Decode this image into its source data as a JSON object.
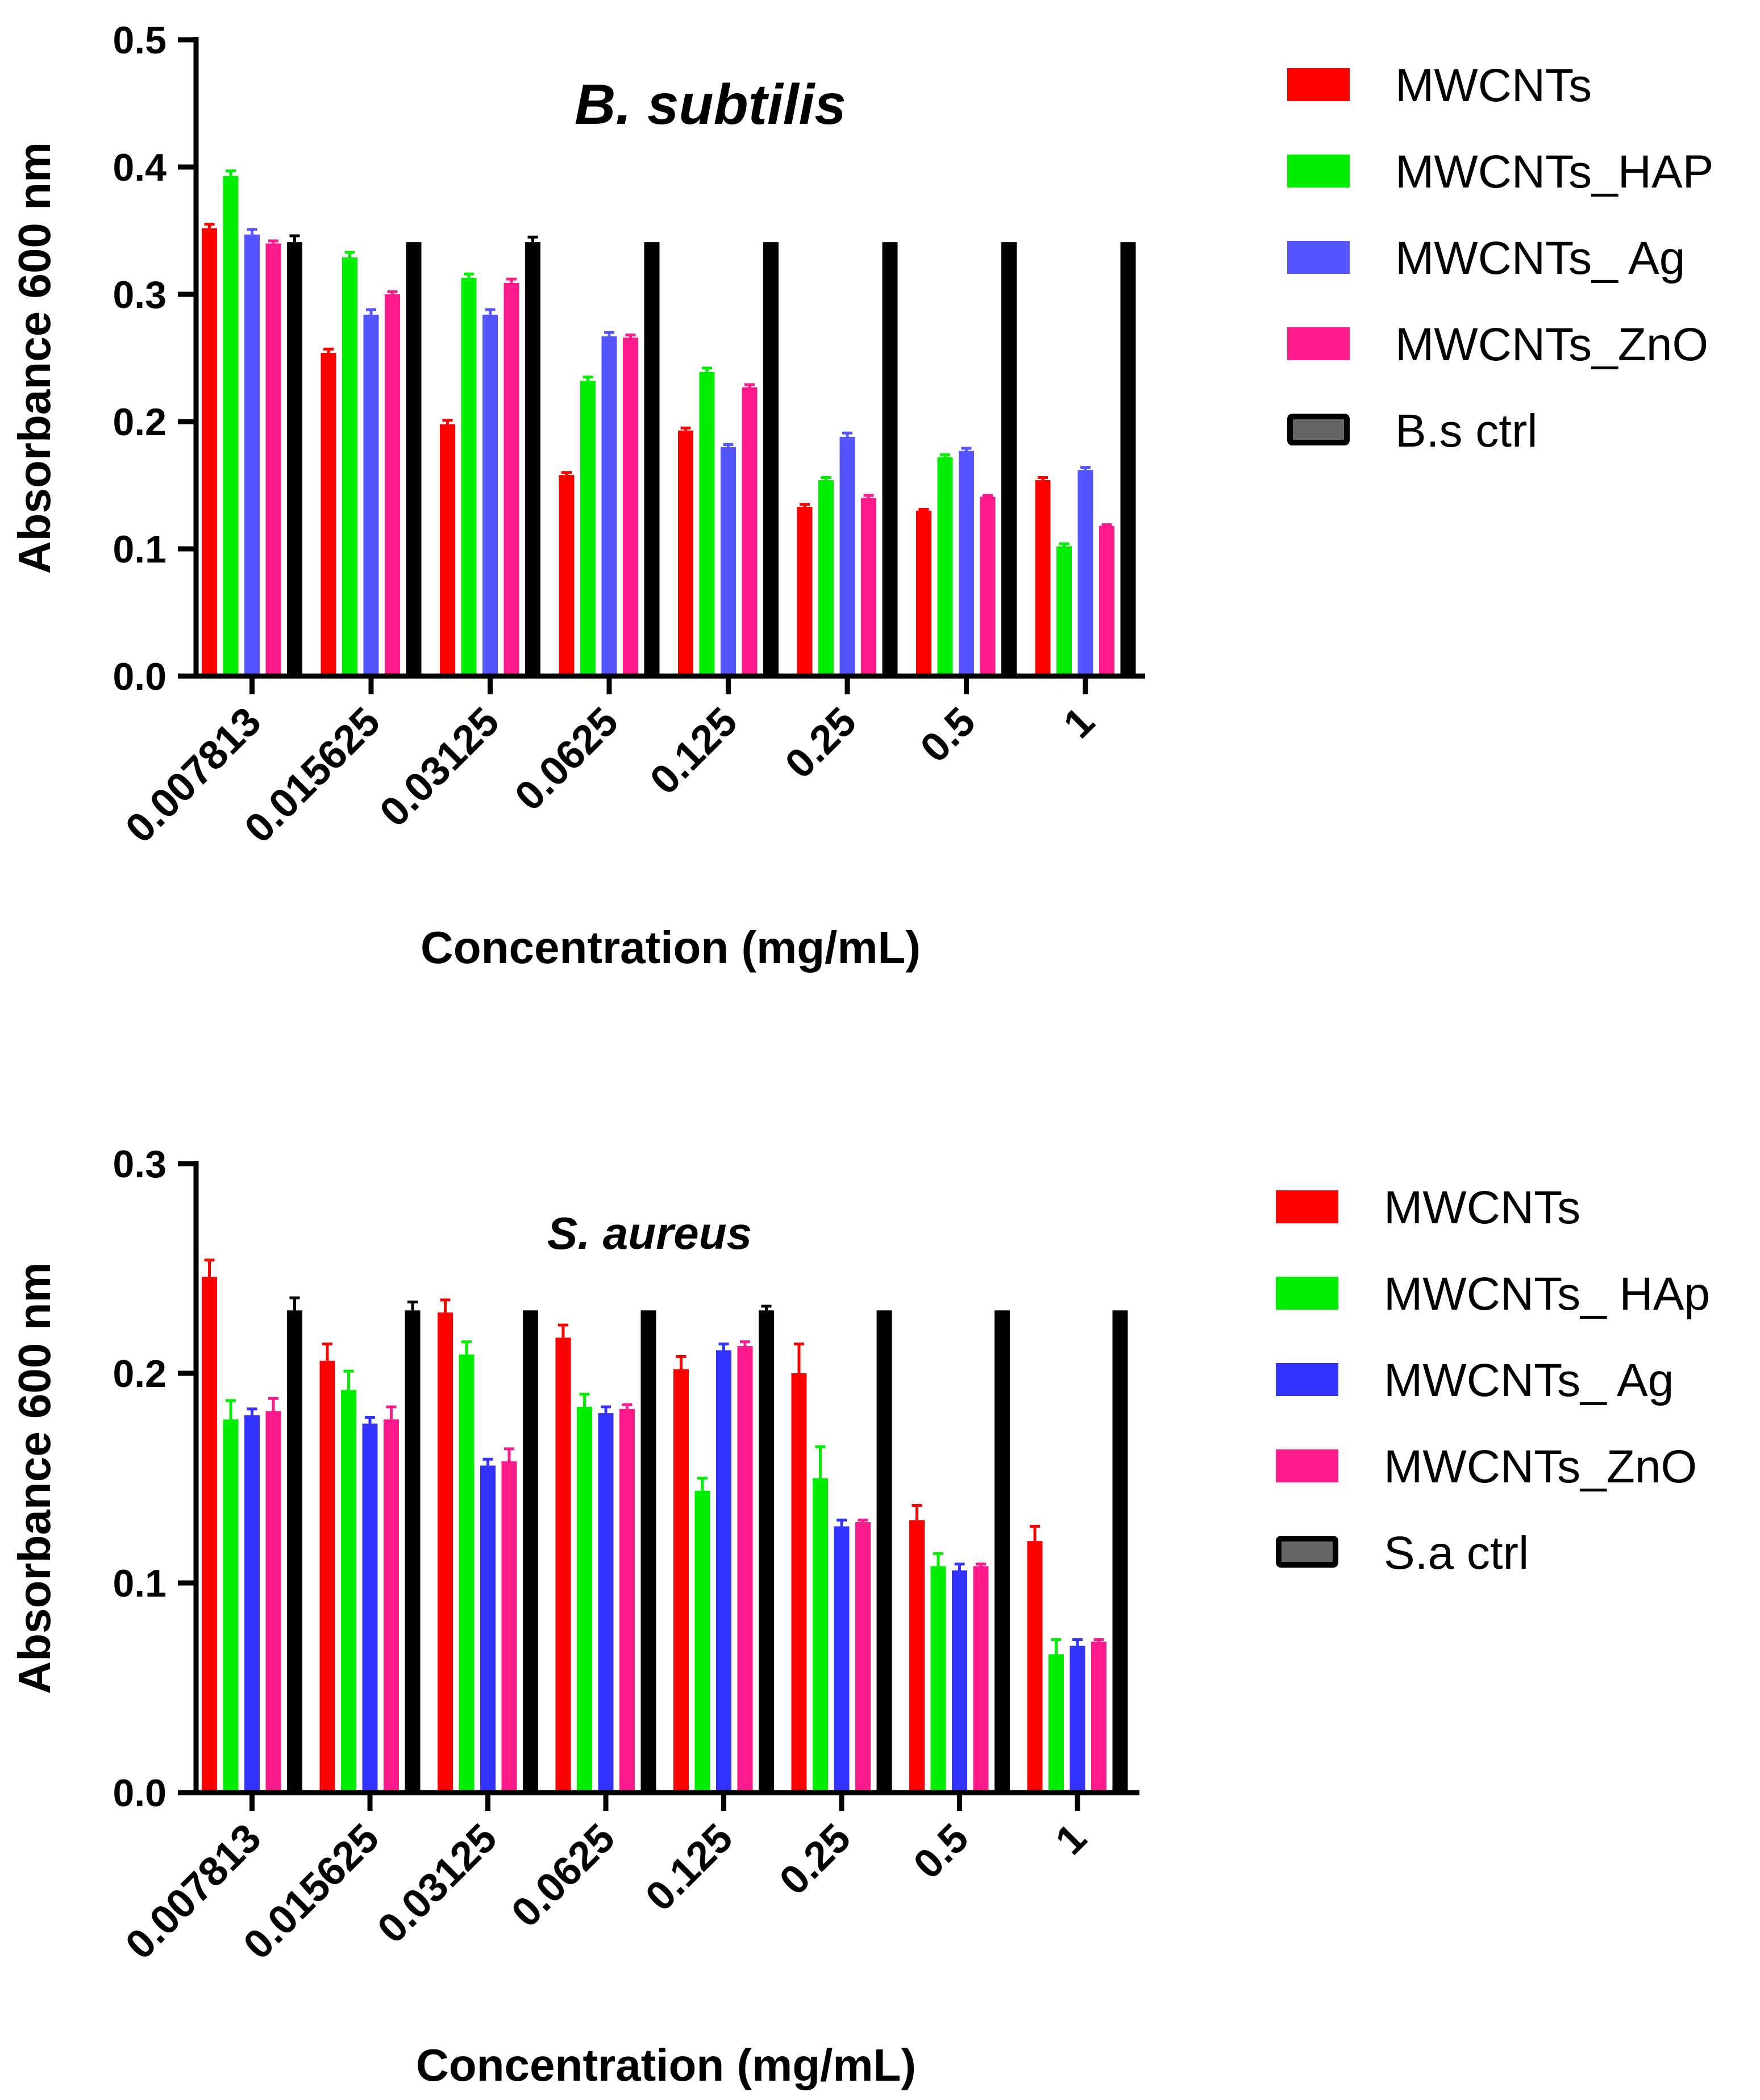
{
  "chart_data": [
    {
      "type": "bar",
      "title": "B. subtilis",
      "xlabel": "Concentration (mg/mL)",
      "ylabel": "Absorbance 600 nm",
      "ylim": [
        0,
        0.5
      ],
      "yticks": [
        "0.0",
        "0.1",
        "0.2",
        "0.3",
        "0.4",
        "0.5"
      ],
      "categories": [
        "0.007813",
        "0.015625",
        "0.03125",
        "0.0625",
        "0.125",
        "0.25",
        "0.5",
        "1"
      ],
      "series": [
        {
          "name": "MWCNTs",
          "color": "#ff0000",
          "values": [
            0.352,
            0.254,
            0.198,
            0.158,
            0.193,
            0.133,
            0.13,
            0.154
          ],
          "errors": [
            0.003,
            0.003,
            0.003,
            0.002,
            0.002,
            0.002,
            0.001,
            0.002
          ]
        },
        {
          "name": "MWCNTs_HAP",
          "color": "#00ee00",
          "values": [
            0.393,
            0.329,
            0.313,
            0.232,
            0.239,
            0.154,
            0.172,
            0.102
          ],
          "errors": [
            0.004,
            0.004,
            0.003,
            0.003,
            0.003,
            0.002,
            0.002,
            0.002
          ]
        },
        {
          "name": "MWCNTs_ Ag",
          "color": "#5555ff",
          "values": [
            0.347,
            0.284,
            0.284,
            0.267,
            0.18,
            0.188,
            0.177,
            0.162
          ],
          "errors": [
            0.004,
            0.004,
            0.004,
            0.003,
            0.002,
            0.003,
            0.002,
            0.002
          ]
        },
        {
          "name": "MWCNTs_ZnO",
          "color": "#ff1a8c",
          "values": [
            0.34,
            0.3,
            0.309,
            0.266,
            0.227,
            0.14,
            0.141,
            0.118
          ],
          "errors": [
            0.002,
            0.002,
            0.003,
            0.002,
            0.002,
            0.002,
            0.001,
            0.001
          ]
        },
        {
          "name": "B.s ctrl",
          "color": "#000000",
          "values": [
            0.341,
            0.341,
            0.341,
            0.341,
            0.341,
            0.341,
            0.341,
            0.341
          ],
          "errors": [
            0.005,
            0,
            0.004,
            0,
            0,
            0,
            0,
            0
          ]
        }
      ]
    },
    {
      "type": "bar",
      "title": "S. aureus",
      "xlabel": "Concentration (mg/mL)",
      "ylabel": "Absorbance 600 nm",
      "ylim": [
        0,
        0.3
      ],
      "yticks": [
        "0.0",
        "0.1",
        "0.2",
        "0.3"
      ],
      "categories": [
        "0.007813",
        "0.015625",
        "0.03125",
        "0.0625",
        "0.125",
        "0.25",
        "0.5",
        "1"
      ],
      "series": [
        {
          "name": "MWCNTs",
          "color": "#ff0000",
          "values": [
            0.246,
            0.206,
            0.229,
            0.217,
            0.202,
            0.2,
            0.13,
            0.12
          ],
          "errors": [
            0.008,
            0.008,
            0.006,
            0.006,
            0.006,
            0.014,
            0.007,
            0.007
          ]
        },
        {
          "name": "MWCNTs_ HAp",
          "color": "#00ee00",
          "values": [
            0.178,
            0.192,
            0.209,
            0.184,
            0.144,
            0.15,
            0.108,
            0.066
          ],
          "errors": [
            0.009,
            0.009,
            0.006,
            0.006,
            0.006,
            0.015,
            0.006,
            0.007
          ]
        },
        {
          "name": "MWCNTs_ Ag",
          "color": "#3333ff",
          "values": [
            0.18,
            0.176,
            0.156,
            0.181,
            0.211,
            0.127,
            0.106,
            0.07
          ],
          "errors": [
            0.003,
            0.003,
            0.003,
            0.003,
            0.003,
            0.003,
            0.003,
            0.003
          ]
        },
        {
          "name": "MWCNTs_ZnO",
          "color": "#ff1a8c",
          "values": [
            0.182,
            0.178,
            0.158,
            0.183,
            0.213,
            0.129,
            0.108,
            0.072
          ],
          "errors": [
            0.006,
            0.006,
            0.006,
            0.002,
            0.002,
            0.001,
            0.001,
            0.001
          ]
        },
        {
          "name": "S.a ctrl",
          "color": "#000000",
          "values": [
            0.23,
            0.23,
            0.23,
            0.23,
            0.23,
            0.23,
            0.23,
            0.23
          ],
          "errors": [
            0.006,
            0.004,
            0,
            0,
            0.002,
            0,
            0,
            0
          ]
        }
      ]
    }
  ]
}
